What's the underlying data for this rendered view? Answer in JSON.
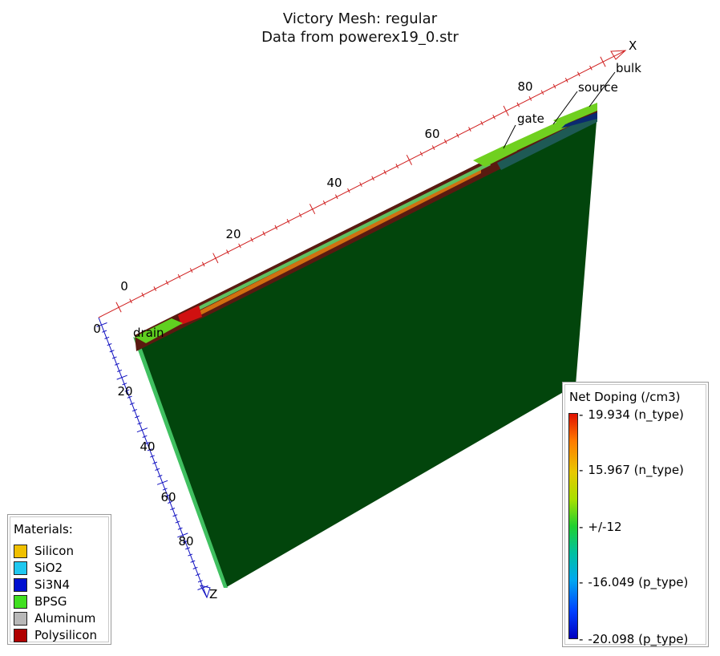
{
  "title": {
    "line1": "Victory Mesh: regular",
    "line2": "Data from powerex19_0.str"
  },
  "axes": {
    "x": {
      "label": "X",
      "ticks": [
        "0",
        "20",
        "40",
        "60",
        "80"
      ]
    },
    "z": {
      "label": "Z",
      "ticks": [
        "0",
        "20",
        "40",
        "60",
        "80"
      ]
    }
  },
  "electrodes": [
    "drain",
    "gate",
    "source",
    "bulk"
  ],
  "materials_legend": {
    "title": "Materials:",
    "items": [
      {
        "name": "Silicon",
        "color": "#f0c000"
      },
      {
        "name": "SiO2",
        "color": "#20c8f0"
      },
      {
        "name": "Si3N4",
        "color": "#0010d0"
      },
      {
        "name": "BPSG",
        "color": "#40e020"
      },
      {
        "name": "Aluminum",
        "color": "#b8b8b8"
      },
      {
        "name": "Polysilicon",
        "color": "#b00000"
      }
    ]
  },
  "doping_legend": {
    "title": "Net Doping (/cm3)",
    "labels": [
      "19.934 (n_type)",
      "15.967 (n_type)",
      "+/-12",
      "-16.049 (p_type)",
      "-20.098 (p_type)"
    ]
  },
  "colors": {
    "substrate": "#02450c",
    "x_axis": "#d02020",
    "z_axis": "#1010c0"
  }
}
